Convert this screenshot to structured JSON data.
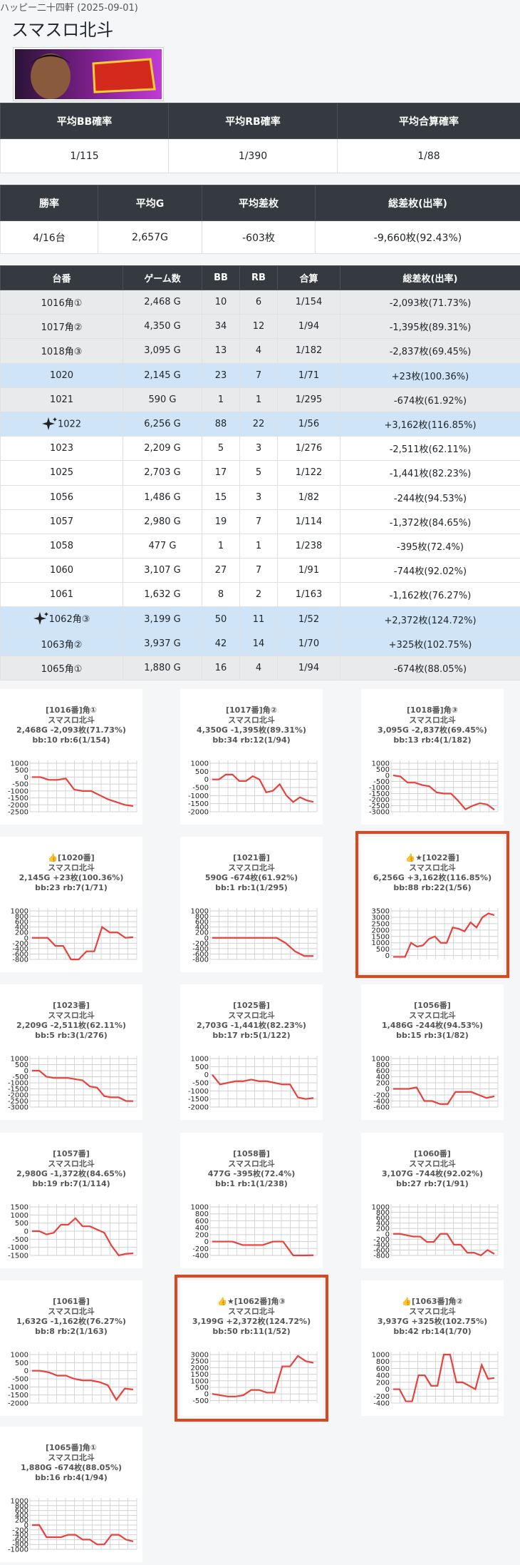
{
  "header": {
    "store": "ハッピー二十四軒 (2025-09-01)",
    "title": "スマスロ北斗"
  },
  "summary_probability": {
    "columns": [
      "平均BB確率",
      "平均RB確率",
      "平均合算確率"
    ],
    "rows": [
      [
        "1/115",
        "1/390",
        "1/88"
      ]
    ]
  },
  "summary_results": {
    "columns": [
      "勝率",
      "平均G",
      "平均差枚",
      "総差枚(出率)"
    ],
    "rows": [
      [
        "4/16台",
        "2,657G",
        "-603枚",
        "-9,660枚(92.43%)"
      ]
    ]
  },
  "machine_table": {
    "columns": [
      "台番",
      "ゲーム数",
      "BB",
      "RB",
      "合算",
      "総差枚(出率)"
    ],
    "rows": [
      {
        "style": "gray",
        "cells": [
          "1016角①",
          "2,468 G",
          "10",
          "6",
          "1/154",
          "-2,093枚(71.73%)"
        ]
      },
      {
        "style": "gray",
        "cells": [
          "1017角②",
          "4,350 G",
          "34",
          "12",
          "1/94",
          "-1,395枚(89.31%)"
        ]
      },
      {
        "style": "gray",
        "cells": [
          "1018角③",
          "3,095 G",
          "13",
          "4",
          "1/182",
          "-2,837枚(69.45%)"
        ]
      },
      {
        "style": "blue",
        "cells": [
          "1020",
          "2,145 G",
          "23",
          "7",
          "1/71",
          "+23枚(100.36%)"
        ]
      },
      {
        "style": "gray",
        "cells": [
          "1021",
          "590 G",
          "1",
          "1",
          "1/295",
          "-674枚(61.92%)"
        ]
      },
      {
        "style": "blue",
        "icon": "sparkle",
        "cells": [
          "1022",
          "6,256 G",
          "88",
          "22",
          "1/56",
          "+3,162枚(116.85%)"
        ]
      },
      {
        "style": "white",
        "cells": [
          "1023",
          "2,209 G",
          "5",
          "3",
          "1/276",
          "-2,511枚(62.11%)"
        ]
      },
      {
        "style": "white",
        "cells": [
          "1025",
          "2,703 G",
          "17",
          "5",
          "1/122",
          "-1,441枚(82.23%)"
        ]
      },
      {
        "style": "white",
        "cells": [
          "1056",
          "1,486 G",
          "15",
          "3",
          "1/82",
          "-244枚(94.53%)"
        ]
      },
      {
        "style": "white",
        "cells": [
          "1057",
          "2,980 G",
          "19",
          "7",
          "1/114",
          "-1,372枚(84.65%)"
        ]
      },
      {
        "style": "white",
        "cells": [
          "1058",
          "477 G",
          "1",
          "1",
          "1/238",
          "-395枚(72.4%)"
        ]
      },
      {
        "style": "white",
        "cells": [
          "1060",
          "3,107 G",
          "27",
          "7",
          "1/91",
          "-744枚(92.02%)"
        ]
      },
      {
        "style": "white",
        "cells": [
          "1061",
          "1,632 G",
          "8",
          "2",
          "1/163",
          "-1,162枚(76.27%)"
        ]
      },
      {
        "style": "blue",
        "icon": "sparkle",
        "cells": [
          "1062角③",
          "3,199 G",
          "50",
          "11",
          "1/52",
          "+2,372枚(124.72%)"
        ]
      },
      {
        "style": "blue",
        "cells": [
          "1063角②",
          "3,937 G",
          "42",
          "14",
          "1/70",
          "+325枚(102.75%)"
        ]
      },
      {
        "style": "gray",
        "cells": [
          "1065角①",
          "1,880 G",
          "16",
          "4",
          "1/94",
          "-674枚(88.05%)"
        ]
      }
    ]
  },
  "chart_data": [
    {
      "type": "line",
      "title": "[1016番]角①",
      "subtitle": "スマスロ北斗",
      "annotations": [
        "2,468G -2,093枚(71.73%)",
        "bb:10 rb:6(1/154)"
      ],
      "color": "#e8413c",
      "ylim": [
        -2500,
        1000
      ],
      "yticks": [
        1000,
        500,
        0,
        -500,
        -1000,
        -1500,
        -2000,
        -2500
      ],
      "values": [
        0,
        0,
        -200,
        -200,
        -100,
        -900,
        -1000,
        -1000,
        -1300,
        -1600,
        -1800,
        -2000,
        -2093
      ]
    },
    {
      "type": "line",
      "title": "[1017番]角②",
      "subtitle": "スマスロ北斗",
      "annotations": [
        "4,350G -1,395枚(89.31%)",
        "bb:34 rb:12(1/94)"
      ],
      "color": "#e8413c",
      "ylim": [
        -2000,
        1000
      ],
      "yticks": [
        1000,
        500,
        0,
        -500,
        -1000,
        -1500,
        -2000
      ],
      "values": [
        0,
        0,
        300,
        300,
        -100,
        -100,
        200,
        0,
        -800,
        -700,
        -300,
        -1000,
        -1400,
        -1100,
        -1300,
        -1395
      ]
    },
    {
      "type": "line",
      "title": "[1018番]角③",
      "subtitle": "スマスロ北斗",
      "annotations": [
        "3,095G -2,837枚(69.45%)",
        "bb:13 rb:4(1/182)"
      ],
      "color": "#e8413c",
      "ylim": [
        -3000,
        1000
      ],
      "yticks": [
        1000,
        500,
        0,
        -500,
        -1000,
        -1500,
        -2000,
        -2500,
        -3000
      ],
      "values": [
        0,
        -100,
        -600,
        -600,
        -800,
        -900,
        -1400,
        -1500,
        -1500,
        -2100,
        -2800,
        -2500,
        -2300,
        -2400,
        -2837
      ]
    },
    {
      "type": "line",
      "title": "👍[1020番]",
      "subtitle": "スマスロ北斗",
      "annotations": [
        "2,145G +23枚(100.36%)",
        "bb:23 rb:7(1/71)"
      ],
      "color": "#e8413c",
      "ylim": [
        -800,
        1000
      ],
      "yticks": [
        1000,
        800,
        600,
        400,
        200,
        0,
        -200,
        -400,
        -600,
        -800
      ],
      "values": [
        0,
        0,
        0,
        -300,
        -300,
        -800,
        -800,
        -500,
        -500,
        400,
        200,
        200,
        0,
        23
      ]
    },
    {
      "type": "line",
      "title": "[1021番]",
      "subtitle": "スマスロ北斗",
      "annotations": [
        "590G -674枚(61.92%)",
        "bb:1 rb:1(1/295)"
      ],
      "color": "#e8413c",
      "ylim": [
        -800,
        1000
      ],
      "yticks": [
        1000,
        800,
        600,
        400,
        200,
        0,
        -200,
        -400,
        -600,
        -800
      ],
      "values": [
        0,
        0,
        0,
        0,
        0,
        0,
        0,
        0,
        -200,
        -500,
        -674,
        -674
      ]
    },
    {
      "type": "line",
      "title": "👍★[1022番]",
      "subtitle": "スマスロ北斗",
      "annotations": [
        "6,256G +3,162枚(116.85%)",
        "bb:88 rb:22(1/56)"
      ],
      "color": "#e8413c",
      "highlight": true,
      "ylim": [
        -300,
        3500
      ],
      "yticks": [
        3500,
        3000,
        2500,
        2000,
        1500,
        1000,
        500,
        0
      ],
      "values": [
        -100,
        -100,
        -100,
        1000,
        700,
        800,
        1300,
        1500,
        1000,
        1000,
        2200,
        2100,
        1900,
        2600,
        2200,
        3000,
        3300,
        3162
      ]
    },
    {
      "type": "line",
      "title": "[1023番]",
      "subtitle": "スマスロ北斗",
      "annotations": [
        "2,209G -2,511枚(62.11%)",
        "bb:5 rb:3(1/276)"
      ],
      "color": "#e8413c",
      "ylim": [
        -3000,
        1000
      ],
      "yticks": [
        1000,
        500,
        0,
        -500,
        -1000,
        -1500,
        -2000,
        -2500,
        -3000
      ],
      "values": [
        0,
        0,
        -500,
        -600,
        -600,
        -600,
        -700,
        -800,
        -1300,
        -1400,
        -2100,
        -2200,
        -2200,
        -2500,
        -2511
      ]
    },
    {
      "type": "line",
      "title": "[1025番]",
      "subtitle": "スマスロ北斗",
      "annotations": [
        "2,703G -1,441枚(82.23%)",
        "bb:17 rb:5(1/122)"
      ],
      "color": "#e8413c",
      "ylim": [
        -2000,
        1000
      ],
      "yticks": [
        1000,
        500,
        0,
        -500,
        -1000,
        -1500,
        -2000
      ],
      "values": [
        0,
        -600,
        -500,
        -400,
        -400,
        -300,
        -400,
        -400,
        -500,
        -600,
        -600,
        -1400,
        -1500,
        -1441
      ]
    },
    {
      "type": "line",
      "title": "[1056番]",
      "subtitle": "スマスロ北斗",
      "annotations": [
        "1,486G -244枚(94.53%)",
        "bb:15 rb:3(1/82)"
      ],
      "color": "#e8413c",
      "ylim": [
        -600,
        1000
      ],
      "yticks": [
        1000,
        800,
        600,
        400,
        200,
        0,
        -200,
        -400,
        -600
      ],
      "values": [
        0,
        0,
        0,
        50,
        -400,
        -400,
        -500,
        -500,
        -100,
        -100,
        -100,
        -200,
        -300,
        -244
      ]
    },
    {
      "type": "line",
      "title": "[1057番]",
      "subtitle": "スマスロ北斗",
      "annotations": [
        "2,980G -1,372枚(84.65%)",
        "bb:19 rb:7(1/114)"
      ],
      "color": "#e8413c",
      "ylim": [
        -1500,
        1500
      ],
      "yticks": [
        1500,
        1000,
        500,
        0,
        -500,
        -1000,
        -1500
      ],
      "values": [
        0,
        0,
        -200,
        -100,
        400,
        400,
        800,
        300,
        300,
        100,
        -100,
        -900,
        -1500,
        -1400,
        -1372
      ]
    },
    {
      "type": "line",
      "title": "[1058番]",
      "subtitle": "スマスロ北斗",
      "annotations": [
        "477G -395枚(72.4%)",
        "bb:1 rb:1(1/238)"
      ],
      "color": "#e8413c",
      "ylim": [
        -400,
        1000
      ],
      "yticks": [
        1000,
        800,
        600,
        400,
        200,
        0,
        -200,
        -400
      ],
      "values": [
        0,
        0,
        0,
        -100,
        -100,
        -100,
        0,
        0,
        -400,
        -400,
        -395
      ]
    },
    {
      "type": "line",
      "title": "[1060番]",
      "subtitle": "スマスロ北斗",
      "annotations": [
        "3,107G -744枚(92.02%)",
        "bb:27 rb:7(1/91)"
      ],
      "color": "#e8413c",
      "ylim": [
        -800,
        1000
      ],
      "yticks": [
        1000,
        800,
        600,
        400,
        200,
        0,
        -200,
        -400,
        -600,
        -800
      ],
      "values": [
        0,
        0,
        -50,
        -100,
        -100,
        -300,
        -300,
        0,
        0,
        -400,
        -400,
        -700,
        -700,
        -800,
        -600,
        -744
      ]
    },
    {
      "type": "line",
      "title": "[1061番]",
      "subtitle": "スマスロ北斗",
      "annotations": [
        "1,632G -1,162枚(76.27%)",
        "bb:8 rb:2(1/163)"
      ],
      "color": "#e8413c",
      "ylim": [
        -2000,
        1000
      ],
      "yticks": [
        1000,
        500,
        0,
        -500,
        -1000,
        -1500,
        -2000
      ],
      "values": [
        0,
        0,
        -100,
        -300,
        -300,
        -500,
        -600,
        -600,
        -700,
        -900,
        -1800,
        -1100,
        -1162
      ]
    },
    {
      "type": "line",
      "title": "👍★[1062番]角③",
      "subtitle": "スマスロ北斗",
      "annotations": [
        "3,199G +2,372枚(124.72%)",
        "bb:50 rb:11(1/52)"
      ],
      "color": "#e8413c",
      "highlight": true,
      "ylim": [
        -700,
        3000
      ],
      "yticks": [
        3000,
        2500,
        2000,
        1500,
        1000,
        500,
        0,
        -500
      ],
      "values": [
        0,
        -100,
        -200,
        -200,
        -100,
        300,
        300,
        100,
        100,
        2100,
        2100,
        2900,
        2500,
        2372
      ]
    },
    {
      "type": "line",
      "title": "👍[1063番]角②",
      "subtitle": "スマスロ北斗",
      "annotations": [
        "3,937G +325枚(102.75%)",
        "bb:42 rb:14(1/70)"
      ],
      "color": "#e8413c",
      "ylim": [
        -400,
        1000
      ],
      "yticks": [
        1000,
        800,
        600,
        400,
        200,
        0,
        -200,
        -400
      ],
      "values": [
        0,
        0,
        -350,
        -350,
        400,
        400,
        100,
        100,
        1000,
        1000,
        200,
        200,
        100,
        0,
        700,
        300,
        325
      ]
    },
    {
      "type": "line",
      "title": "[1065番]角①",
      "subtitle": "スマスロ北斗",
      "annotations": [
        "1,880G -674枚(88.05%)",
        "bb:16 rb:4(1/94)"
      ],
      "color": "#e8413c",
      "ylim": [
        -1000,
        1000
      ],
      "yticks": [
        1000,
        800,
        600,
        400,
        200,
        0,
        -200,
        -400,
        -600,
        -800,
        -1000
      ],
      "values": [
        0,
        0,
        -500,
        -500,
        -500,
        -400,
        -400,
        -600,
        -600,
        -800,
        -800,
        -400,
        -400,
        -600,
        -674
      ]
    }
  ]
}
